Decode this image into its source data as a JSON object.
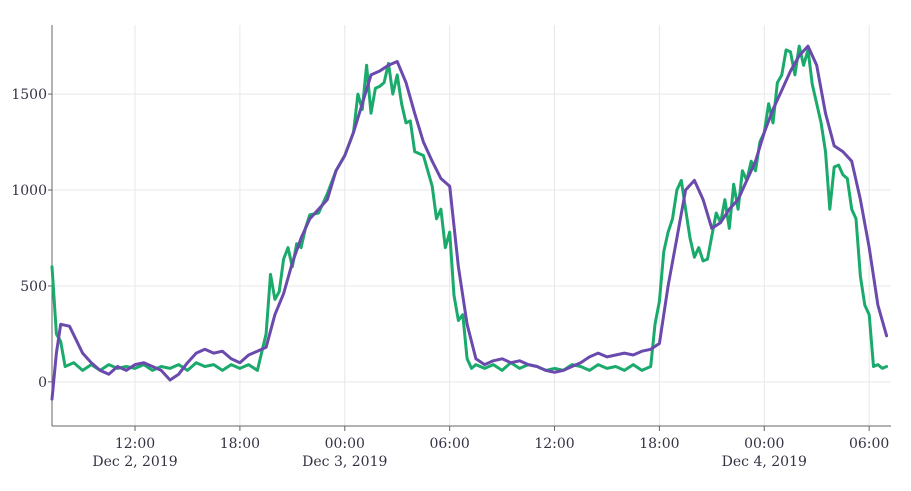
{
  "chart_data": {
    "type": "line",
    "title": "",
    "xlabel": "",
    "ylabel": "",
    "x_range": [
      "2019-12-02 07:15",
      "2019-12-04 07:15"
    ],
    "ylim": [
      -230,
      1860
    ],
    "y_ticks": [
      0,
      500,
      1000,
      1500
    ],
    "y_tick_labels": [
      "0",
      "500",
      "1000",
      "1500"
    ],
    "x_ticks": [
      {
        "at": "2019-12-02 12:00",
        "label": "12:00",
        "sublabel": "Dec 2, 2019"
      },
      {
        "at": "2019-12-02 18:00",
        "label": "18:00",
        "sublabel": ""
      },
      {
        "at": "2019-12-03 00:00",
        "label": "00:00",
        "sublabel": "Dec 3, 2019"
      },
      {
        "at": "2019-12-03 06:00",
        "label": "06:00",
        "sublabel": ""
      },
      {
        "at": "2019-12-03 12:00",
        "label": "12:00",
        "sublabel": ""
      },
      {
        "at": "2019-12-03 18:00",
        "label": "18:00",
        "sublabel": ""
      },
      {
        "at": "2019-12-04 00:00",
        "label": "00:00",
        "sublabel": "Dec 4, 2019"
      },
      {
        "at": "2019-12-04 06:00",
        "label": "06:00",
        "sublabel": ""
      }
    ],
    "grid": true,
    "legend": "none",
    "series": [
      {
        "color": "#1aaa6b",
        "points": [
          [
            "2019-12-02 07:15",
            600
          ],
          [
            "2019-12-02 07:30",
            250
          ],
          [
            "2019-12-02 07:45",
            210
          ],
          [
            "2019-12-02 08:00",
            80
          ],
          [
            "2019-12-02 08:30",
            100
          ],
          [
            "2019-12-02 09:00",
            60
          ],
          [
            "2019-12-02 09:30",
            90
          ],
          [
            "2019-12-02 10:00",
            60
          ],
          [
            "2019-12-02 10:30",
            90
          ],
          [
            "2019-12-02 11:00",
            70
          ],
          [
            "2019-12-02 11:30",
            80
          ],
          [
            "2019-12-02 12:00",
            70
          ],
          [
            "2019-12-02 12:30",
            90
          ],
          [
            "2019-12-02 13:00",
            60
          ],
          [
            "2019-12-02 13:30",
            80
          ],
          [
            "2019-12-02 14:00",
            70
          ],
          [
            "2019-12-02 14:30",
            90
          ],
          [
            "2019-12-02 15:00",
            60
          ],
          [
            "2019-12-02 15:30",
            100
          ],
          [
            "2019-12-02 16:00",
            80
          ],
          [
            "2019-12-02 16:30",
            90
          ],
          [
            "2019-12-02 17:00",
            60
          ],
          [
            "2019-12-02 17:30",
            90
          ],
          [
            "2019-12-02 18:00",
            70
          ],
          [
            "2019-12-02 18:30",
            90
          ],
          [
            "2019-12-02 19:00",
            60
          ],
          [
            "2019-12-02 19:30",
            250
          ],
          [
            "2019-12-02 19:45",
            560
          ],
          [
            "2019-12-02 20:00",
            430
          ],
          [
            "2019-12-02 20:15",
            470
          ],
          [
            "2019-12-02 20:30",
            640
          ],
          [
            "2019-12-02 20:45",
            700
          ],
          [
            "2019-12-02 21:00",
            600
          ],
          [
            "2019-12-02 21:15",
            720
          ],
          [
            "2019-12-02 21:30",
            700
          ],
          [
            "2019-12-02 21:45",
            800
          ],
          [
            "2019-12-02 22:00",
            870
          ],
          [
            "2019-12-02 22:30",
            880
          ],
          [
            "2019-12-02 23:00",
            980
          ],
          [
            "2019-12-02 23:30",
            1100
          ],
          [
            "2019-12-03 00:00",
            1180
          ],
          [
            "2019-12-03 00:30",
            1300
          ],
          [
            "2019-12-03 00:45",
            1500
          ],
          [
            "2019-12-03 01:00",
            1420
          ],
          [
            "2019-12-03 01:15",
            1650
          ],
          [
            "2019-12-03 01:30",
            1400
          ],
          [
            "2019-12-03 01:45",
            1530
          ],
          [
            "2019-12-03 02:00",
            1540
          ],
          [
            "2019-12-03 02:15",
            1560
          ],
          [
            "2019-12-03 02:30",
            1660
          ],
          [
            "2019-12-03 02:45",
            1500
          ],
          [
            "2019-12-03 03:00",
            1600
          ],
          [
            "2019-12-03 03:15",
            1450
          ],
          [
            "2019-12-03 03:30",
            1350
          ],
          [
            "2019-12-03 03:45",
            1360
          ],
          [
            "2019-12-03 04:00",
            1200
          ],
          [
            "2019-12-03 04:30",
            1180
          ],
          [
            "2019-12-03 05:00",
            1020
          ],
          [
            "2019-12-03 05:15",
            850
          ],
          [
            "2019-12-03 05:30",
            900
          ],
          [
            "2019-12-03 05:45",
            700
          ],
          [
            "2019-12-03 06:00",
            780
          ],
          [
            "2019-12-03 06:15",
            450
          ],
          [
            "2019-12-03 06:30",
            320
          ],
          [
            "2019-12-03 06:45",
            350
          ],
          [
            "2019-12-03 07:00",
            120
          ],
          [
            "2019-12-03 07:15",
            70
          ],
          [
            "2019-12-03 07:30",
            90
          ],
          [
            "2019-12-03 08:00",
            70
          ],
          [
            "2019-12-03 08:30",
            90
          ],
          [
            "2019-12-03 09:00",
            60
          ],
          [
            "2019-12-03 09:30",
            100
          ],
          [
            "2019-12-03 10:00",
            70
          ],
          [
            "2019-12-03 10:30",
            90
          ],
          [
            "2019-12-03 11:00",
            80
          ],
          [
            "2019-12-03 11:30",
            60
          ],
          [
            "2019-12-03 12:00",
            70
          ],
          [
            "2019-12-03 12:30",
            60
          ],
          [
            "2019-12-03 13:00",
            90
          ],
          [
            "2019-12-03 13:30",
            80
          ],
          [
            "2019-12-03 14:00",
            60
          ],
          [
            "2019-12-03 14:30",
            90
          ],
          [
            "2019-12-03 15:00",
            70
          ],
          [
            "2019-12-03 15:30",
            80
          ],
          [
            "2019-12-03 16:00",
            60
          ],
          [
            "2019-12-03 16:30",
            90
          ],
          [
            "2019-12-03 17:00",
            60
          ],
          [
            "2019-12-03 17:30",
            80
          ],
          [
            "2019-12-03 17:45",
            300
          ],
          [
            "2019-12-03 18:00",
            420
          ],
          [
            "2019-12-03 18:15",
            680
          ],
          [
            "2019-12-03 18:30",
            780
          ],
          [
            "2019-12-03 18:45",
            850
          ],
          [
            "2019-12-03 19:00",
            1000
          ],
          [
            "2019-12-03 19:15",
            1050
          ],
          [
            "2019-12-03 19:30",
            900
          ],
          [
            "2019-12-03 19:45",
            750
          ],
          [
            "2019-12-03 20:00",
            650
          ],
          [
            "2019-12-03 20:15",
            700
          ],
          [
            "2019-12-03 20:30",
            630
          ],
          [
            "2019-12-03 20:45",
            640
          ],
          [
            "2019-12-03 21:00",
            760
          ],
          [
            "2019-12-03 21:15",
            880
          ],
          [
            "2019-12-03 21:30",
            830
          ],
          [
            "2019-12-03 21:45",
            950
          ],
          [
            "2019-12-03 22:00",
            800
          ],
          [
            "2019-12-03 22:15",
            1030
          ],
          [
            "2019-12-03 22:30",
            900
          ],
          [
            "2019-12-03 22:45",
            1100
          ],
          [
            "2019-12-03 23:00",
            1050
          ],
          [
            "2019-12-03 23:15",
            1150
          ],
          [
            "2019-12-03 23:30",
            1100
          ],
          [
            "2019-12-03 23:45",
            1250
          ],
          [
            "2019-12-04 00:00",
            1300
          ],
          [
            "2019-12-04 00:15",
            1450
          ],
          [
            "2019-12-04 00:30",
            1350
          ],
          [
            "2019-12-04 00:45",
            1560
          ],
          [
            "2019-12-04 01:00",
            1600
          ],
          [
            "2019-12-04 01:15",
            1730
          ],
          [
            "2019-12-04 01:30",
            1720
          ],
          [
            "2019-12-04 01:45",
            1600
          ],
          [
            "2019-12-04 02:00",
            1750
          ],
          [
            "2019-12-04 02:15",
            1650
          ],
          [
            "2019-12-04 02:30",
            1730
          ],
          [
            "2019-12-04 02:45",
            1550
          ],
          [
            "2019-12-04 03:00",
            1450
          ],
          [
            "2019-12-04 03:15",
            1350
          ],
          [
            "2019-12-04 03:30",
            1200
          ],
          [
            "2019-12-04 03:45",
            900
          ],
          [
            "2019-12-04 04:00",
            1120
          ],
          [
            "2019-12-04 04:15",
            1130
          ],
          [
            "2019-12-04 04:30",
            1080
          ],
          [
            "2019-12-04 04:45",
            1060
          ],
          [
            "2019-12-04 05:00",
            900
          ],
          [
            "2019-12-04 05:15",
            850
          ],
          [
            "2019-12-04 05:30",
            550
          ],
          [
            "2019-12-04 05:45",
            400
          ],
          [
            "2019-12-04 06:00",
            350
          ],
          [
            "2019-12-04 06:15",
            80
          ],
          [
            "2019-12-04 06:30",
            90
          ],
          [
            "2019-12-04 06:45",
            70
          ],
          [
            "2019-12-04 07:00",
            80
          ]
        ]
      },
      {
        "color": "#6a4aad",
        "points": [
          [
            "2019-12-02 07:15",
            -90
          ],
          [
            "2019-12-02 07:30",
            150
          ],
          [
            "2019-12-02 07:45",
            300
          ],
          [
            "2019-12-02 08:15",
            290
          ],
          [
            "2019-12-02 09:00",
            150
          ],
          [
            "2019-12-02 09:30",
            100
          ],
          [
            "2019-12-02 10:00",
            60
          ],
          [
            "2019-12-02 10:30",
            40
          ],
          [
            "2019-12-02 11:00",
            80
          ],
          [
            "2019-12-02 11:30",
            60
          ],
          [
            "2019-12-02 12:00",
            90
          ],
          [
            "2019-12-02 12:30",
            100
          ],
          [
            "2019-12-02 13:00",
            80
          ],
          [
            "2019-12-02 13:30",
            60
          ],
          [
            "2019-12-02 14:00",
            10
          ],
          [
            "2019-12-02 14:30",
            40
          ],
          [
            "2019-12-02 15:00",
            100
          ],
          [
            "2019-12-02 15:30",
            150
          ],
          [
            "2019-12-02 16:00",
            170
          ],
          [
            "2019-12-02 16:30",
            150
          ],
          [
            "2019-12-02 17:00",
            160
          ],
          [
            "2019-12-02 17:30",
            120
          ],
          [
            "2019-12-02 18:00",
            100
          ],
          [
            "2019-12-02 18:30",
            140
          ],
          [
            "2019-12-02 19:00",
            160
          ],
          [
            "2019-12-02 19:30",
            180
          ],
          [
            "2019-12-02 20:00",
            350
          ],
          [
            "2019-12-02 20:30",
            460
          ],
          [
            "2019-12-02 21:00",
            620
          ],
          [
            "2019-12-02 21:30",
            750
          ],
          [
            "2019-12-02 22:00",
            850
          ],
          [
            "2019-12-02 22:30",
            900
          ],
          [
            "2019-12-02 23:00",
            950
          ],
          [
            "2019-12-02 23:30",
            1100
          ],
          [
            "2019-12-03 00:00",
            1180
          ],
          [
            "2019-12-03 00:30",
            1300
          ],
          [
            "2019-12-03 01:00",
            1450
          ],
          [
            "2019-12-03 01:30",
            1600
          ],
          [
            "2019-12-03 02:00",
            1620
          ],
          [
            "2019-12-03 02:30",
            1650
          ],
          [
            "2019-12-03 03:00",
            1670
          ],
          [
            "2019-12-03 03:30",
            1560
          ],
          [
            "2019-12-03 04:00",
            1400
          ],
          [
            "2019-12-03 04:30",
            1250
          ],
          [
            "2019-12-03 05:00",
            1150
          ],
          [
            "2019-12-03 05:30",
            1060
          ],
          [
            "2019-12-03 06:00",
            1020
          ],
          [
            "2019-12-03 06:30",
            600
          ],
          [
            "2019-12-03 07:00",
            300
          ],
          [
            "2019-12-03 07:30",
            120
          ],
          [
            "2019-12-03 08:00",
            90
          ],
          [
            "2019-12-03 08:30",
            110
          ],
          [
            "2019-12-03 09:00",
            120
          ],
          [
            "2019-12-03 09:30",
            100
          ],
          [
            "2019-12-03 10:00",
            110
          ],
          [
            "2019-12-03 10:30",
            90
          ],
          [
            "2019-12-03 11:00",
            80
          ],
          [
            "2019-12-03 11:30",
            60
          ],
          [
            "2019-12-03 12:00",
            50
          ],
          [
            "2019-12-03 12:30",
            60
          ],
          [
            "2019-12-03 13:00",
            80
          ],
          [
            "2019-12-03 13:30",
            100
          ],
          [
            "2019-12-03 14:00",
            130
          ],
          [
            "2019-12-03 14:30",
            150
          ],
          [
            "2019-12-03 15:00",
            130
          ],
          [
            "2019-12-03 15:30",
            140
          ],
          [
            "2019-12-03 16:00",
            150
          ],
          [
            "2019-12-03 16:30",
            140
          ],
          [
            "2019-12-03 17:00",
            160
          ],
          [
            "2019-12-03 17:30",
            170
          ],
          [
            "2019-12-03 18:00",
            200
          ],
          [
            "2019-12-03 18:30",
            500
          ],
          [
            "2019-12-03 19:00",
            750
          ],
          [
            "2019-12-03 19:30",
            1000
          ],
          [
            "2019-12-03 20:00",
            1050
          ],
          [
            "2019-12-03 20:30",
            950
          ],
          [
            "2019-12-03 21:00",
            800
          ],
          [
            "2019-12-03 21:30",
            830
          ],
          [
            "2019-12-03 22:00",
            900
          ],
          [
            "2019-12-03 22:30",
            950
          ],
          [
            "2019-12-03 23:00",
            1050
          ],
          [
            "2019-12-03 23:30",
            1150
          ],
          [
            "2019-12-04 00:00",
            1300
          ],
          [
            "2019-12-04 00:30",
            1420
          ],
          [
            "2019-12-04 01:00",
            1520
          ],
          [
            "2019-12-04 01:30",
            1620
          ],
          [
            "2019-12-04 02:00",
            1700
          ],
          [
            "2019-12-04 02:30",
            1750
          ],
          [
            "2019-12-04 03:00",
            1650
          ],
          [
            "2019-12-04 03:30",
            1400
          ],
          [
            "2019-12-04 04:00",
            1230
          ],
          [
            "2019-12-04 04:30",
            1200
          ],
          [
            "2019-12-04 05:00",
            1150
          ],
          [
            "2019-12-04 05:30",
            950
          ],
          [
            "2019-12-04 06:00",
            700
          ],
          [
            "2019-12-04 06:30",
            400
          ],
          [
            "2019-12-04 07:00",
            240
          ]
        ]
      }
    ]
  }
}
